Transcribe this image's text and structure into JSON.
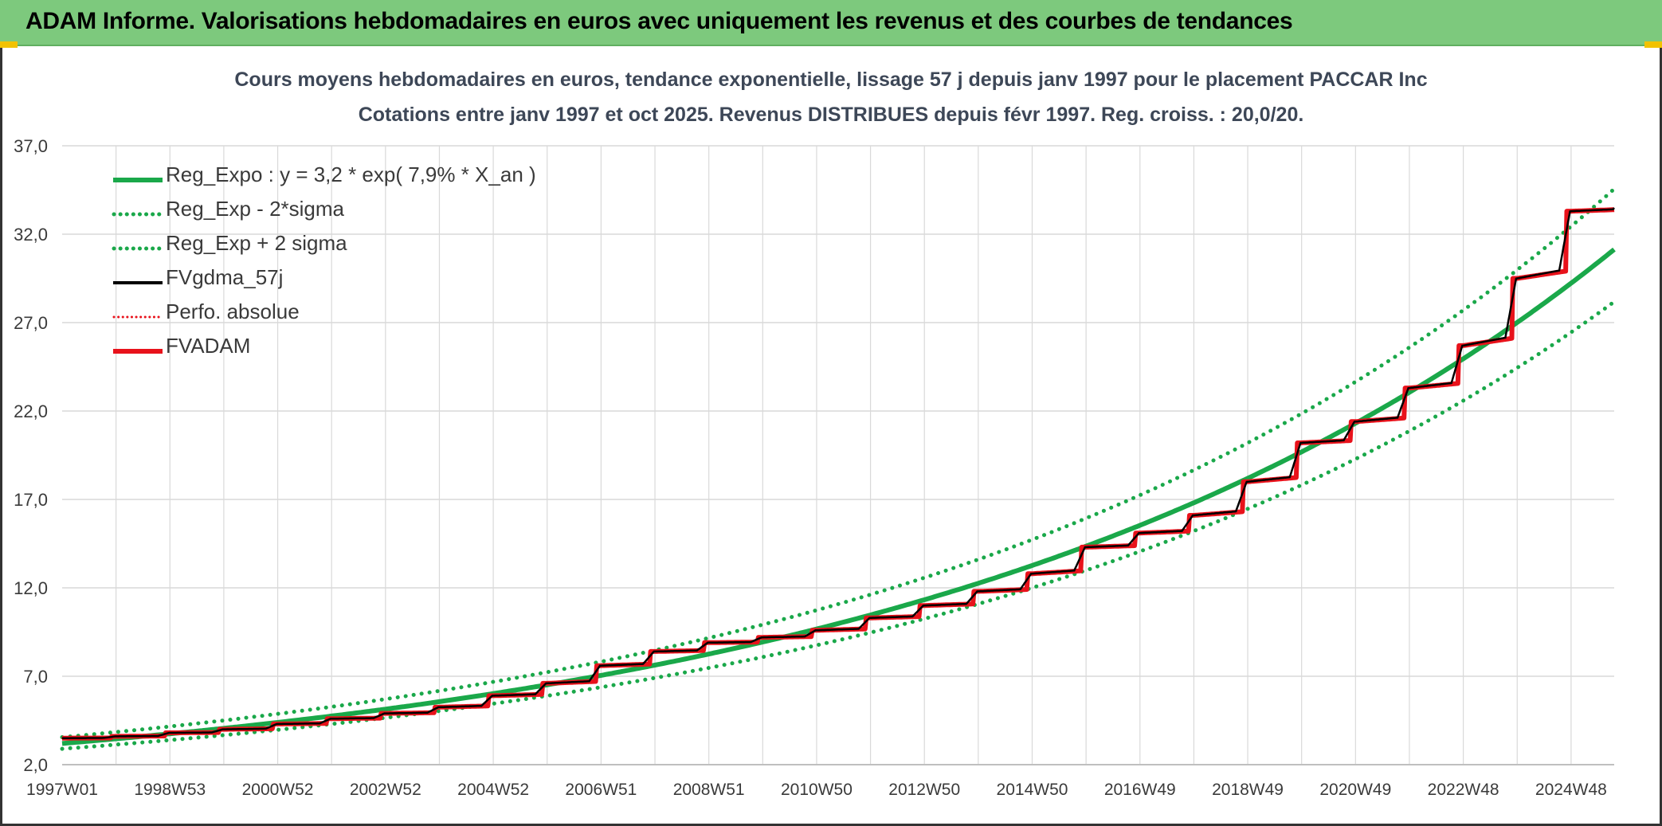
{
  "header": {
    "title": "ADAM Informe. Valorisations hebdomadaires en euros avec uniquement les revenus et des courbes de tendances"
  },
  "colors": {
    "banner": "#7dc97d",
    "trend": "#1aa84a",
    "gdma": "#000000",
    "adam": "#e8121b",
    "grid": "#d9d9d9"
  },
  "chart_data": {
    "type": "line",
    "title": "Cours moyens hebdomadaires en euros, tendance exponentielle, lissage 57 j depuis janv 1997 pour le placement PACCAR Inc",
    "subtitle": "Cotations entre janv 1997 et oct 2025. Revenus DISTRIBUES depuis févr 1997. Reg. croiss. : 20,0/20.",
    "xlabel": "",
    "ylabel": "",
    "x_range": [
      1997.0,
      2025.8
    ],
    "ylim": [
      2.0,
      37.0
    ],
    "y_ticks": [
      "2,0",
      "7,0",
      "12,0",
      "17,0",
      "22,0",
      "27,0",
      "32,0",
      "37,0"
    ],
    "y_tick_values": [
      2,
      7,
      12,
      17,
      22,
      27,
      32,
      37
    ],
    "x_tick_labels": [
      "1997W01",
      "1998W53",
      "2000W52",
      "2002W52",
      "2004W52",
      "2006W51",
      "2008W51",
      "2010W50",
      "2012W50",
      "2014W50",
      "2016W49",
      "2018W49",
      "2020W49",
      "2022W48",
      "2024W48"
    ],
    "x_tick_values": [
      1997.0,
      1999.0,
      2001.0,
      2003.0,
      2005.0,
      2007.0,
      2009.0,
      2011.0,
      2013.0,
      2015.0,
      2017.0,
      2019.0,
      2021.0,
      2023.0,
      2025.0
    ],
    "grid": true,
    "legend_position": "top-left",
    "trend": {
      "a": 3.2,
      "rate": 0.079
    },
    "series": [
      {
        "name": "Reg_Expo : y = 3,2 * exp( 7,9% *  X_an )",
        "style": "solid-thick",
        "x": [
          1997.0,
          1999.0,
          2001.0,
          2003.0,
          2005.0,
          2007.0,
          2009.0,
          2011.0,
          2013.0,
          2015.0,
          2017.0,
          2019.0,
          2021.0,
          2023.0,
          2025.0,
          2025.8
        ],
        "values": [
          3.2,
          3.75,
          4.4,
          5.15,
          6.05,
          7.05,
          8.3,
          9.7,
          11.35,
          13.3,
          15.6,
          18.3,
          21.4,
          25.1,
          29.4,
          30.6
        ]
      },
      {
        "name": "Reg_Exp - 2*sigma",
        "style": "dotted",
        "x": [
          1997.0,
          1999.0,
          2001.0,
          2003.0,
          2005.0,
          2007.0,
          2009.0,
          2011.0,
          2013.0,
          2015.0,
          2017.0,
          2019.0,
          2021.0,
          2023.0,
          2025.0,
          2025.8
        ],
        "values": [
          2.9,
          3.4,
          4.0,
          4.65,
          5.45,
          6.4,
          7.5,
          8.8,
          10.3,
          12.0,
          14.1,
          16.5,
          19.4,
          22.7,
          26.6,
          27.8
        ]
      },
      {
        "name": "Reg_Exp + 2 sigma",
        "style": "dotted",
        "x": [
          1997.0,
          1999.0,
          2001.0,
          2003.0,
          2005.0,
          2007.0,
          2009.0,
          2011.0,
          2013.0,
          2015.0,
          2017.0,
          2019.0,
          2021.0,
          2023.0,
          2025.0,
          2025.8
        ],
        "values": [
          3.55,
          4.15,
          4.85,
          5.7,
          6.7,
          7.8,
          9.15,
          10.75,
          12.55,
          14.7,
          17.25,
          20.2,
          23.7,
          27.75,
          32.5,
          34.0
        ]
      },
      {
        "name": "FVgdma_57j",
        "style": "solid-black",
        "x": [
          1997.0,
          1998.0,
          1999.0,
          2000.0,
          2001.0,
          2002.0,
          2003.0,
          2004.0,
          2005.0,
          2006.0,
          2007.0,
          2008.0,
          2009.0,
          2010.0,
          2011.0,
          2012.0,
          2013.0,
          2014.0,
          2015.0,
          2016.0,
          2017.0,
          2018.0,
          2019.0,
          2020.0,
          2021.0,
          2022.0,
          2023.0,
          2024.0,
          2025.0,
          2025.8
        ],
        "values": [
          3.5,
          3.6,
          3.8,
          4.0,
          4.3,
          4.6,
          4.9,
          5.25,
          5.9,
          6.6,
          7.6,
          8.4,
          8.9,
          9.2,
          9.6,
          10.3,
          11.0,
          11.8,
          12.8,
          14.3,
          15.1,
          16.1,
          18.0,
          20.2,
          21.4,
          23.3,
          25.7,
          29.5,
          33.3,
          34.2
        ]
      },
      {
        "name": "Perfo. absolue",
        "style": "dotted-red",
        "x": [
          1997.0,
          1998.0,
          1999.0,
          2000.0,
          2001.0,
          2002.0,
          2003.0,
          2004.0,
          2005.0,
          2006.0,
          2007.0,
          2008.0,
          2009.0,
          2010.0,
          2011.0,
          2012.0,
          2013.0,
          2014.0,
          2015.0,
          2016.0,
          2017.0,
          2018.0,
          2019.0,
          2020.0,
          2021.0,
          2022.0,
          2023.0,
          2024.0,
          2025.0,
          2025.8
        ],
        "values": [
          3.5,
          3.6,
          3.8,
          4.0,
          4.3,
          4.6,
          4.9,
          5.25,
          5.9,
          6.6,
          7.6,
          8.4,
          8.9,
          9.2,
          9.6,
          10.3,
          11.0,
          11.8,
          12.8,
          14.3,
          15.1,
          16.1,
          18.0,
          20.2,
          21.4,
          23.3,
          25.7,
          29.5,
          33.3,
          34.2
        ]
      },
      {
        "name": "FVADAM",
        "style": "solid-thick-red-steps",
        "x": [
          1997.0,
          1998.0,
          1999.0,
          2000.0,
          2001.0,
          2002.0,
          2003.0,
          2004.0,
          2005.0,
          2006.0,
          2007.0,
          2008.0,
          2009.0,
          2010.0,
          2011.0,
          2012.0,
          2013.0,
          2014.0,
          2015.0,
          2016.0,
          2017.0,
          2018.0,
          2019.0,
          2020.0,
          2021.0,
          2022.0,
          2023.0,
          2024.0,
          2025.0,
          2025.8
        ],
        "values": [
          3.5,
          3.6,
          3.8,
          4.0,
          4.3,
          4.6,
          4.9,
          5.25,
          5.9,
          6.6,
          7.6,
          8.4,
          8.9,
          9.2,
          9.6,
          10.3,
          11.0,
          11.8,
          12.8,
          14.3,
          15.1,
          16.1,
          18.0,
          20.2,
          21.4,
          23.3,
          25.7,
          29.5,
          33.3,
          34.2
        ]
      }
    ]
  }
}
